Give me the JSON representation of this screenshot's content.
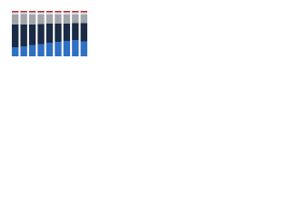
{
  "chart_data": {
    "type": "stacked-bar",
    "categories": [
      null,
      null,
      null,
      null,
      null,
      null,
      null,
      null,
      null
    ],
    "series": [
      {
        "color": "#2f6fc4",
        "values": [
          20,
          22,
          25,
          27,
          30,
          32,
          34,
          36,
          33
        ]
      },
      {
        "color": "#1b2a45",
        "values": [
          50,
          48,
          45,
          44,
          42,
          40,
          38,
          37,
          40
        ]
      },
      {
        "color": "#a2a5a9",
        "values": [
          22,
          23,
          22,
          21,
          20,
          20,
          20,
          19,
          19
        ]
      },
      {
        "color": "#d9dadc",
        "values": [
          5,
          4,
          5,
          5,
          5,
          5,
          5,
          5,
          5
        ]
      },
      {
        "color": "#c0282d",
        "values": [
          3,
          3,
          3,
          3,
          3,
          3,
          3,
          3,
          3
        ]
      }
    ],
    "ylim": [
      0,
      100
    ]
  }
}
